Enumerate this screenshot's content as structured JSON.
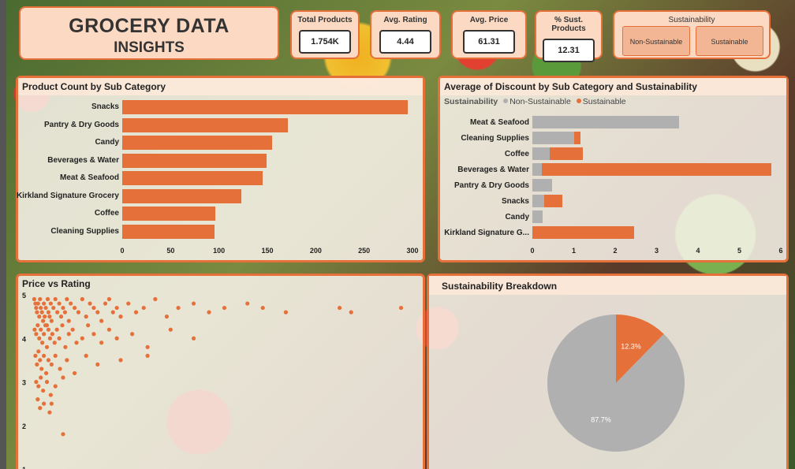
{
  "header": {
    "title_line1": "GROCERY DATA",
    "title_line2": "INSIGHTS"
  },
  "kpis": [
    {
      "label": "Total Products",
      "value": "1.754K"
    },
    {
      "label": "Avg. Rating",
      "value": "4.44"
    },
    {
      "label": "Avg. Price",
      "value": "61.31"
    },
    {
      "label": "% Sust. Products",
      "value": "12.31"
    }
  ],
  "slicer": {
    "label": "Sustainability",
    "options": [
      "Non-Sustainable",
      "Sustainable"
    ]
  },
  "colors": {
    "orange": "#e6703a",
    "gray": "#b0b0b0",
    "panel_border": "#e6703a"
  },
  "chart_data": [
    {
      "type": "bar",
      "title": "Product Count by Sub Category",
      "orientation": "horizontal",
      "categories": [
        "Snacks",
        "Pantry & Dry Goods",
        "Candy",
        "Beverages & Water",
        "Meat & Seafood",
        "Kirkland Signature Grocery",
        "Coffee",
        "Cleaning Supplies"
      ],
      "values": [
        295,
        171,
        155,
        149,
        145,
        123,
        96,
        95
      ],
      "xlim": [
        0,
        300
      ],
      "xticks": [
        "0",
        "50",
        "100",
        "150",
        "200",
        "250",
        "300"
      ]
    },
    {
      "type": "bar",
      "stacked": true,
      "orientation": "horizontal",
      "title": "Average of Discount by Sub Category and Sustainability",
      "legend_title": "Sustainability",
      "categories": [
        "Meat & Seafood",
        "Cleaning Supplies",
        "Coffee",
        "Beverages & Water",
        "Pantry & Dry Goods",
        "Snacks",
        "Candy",
        "Kirkland Signature G..."
      ],
      "series": [
        {
          "name": "Non-Sustainable",
          "color": "#b0b0b0",
          "values": [
            3.55,
            1.0,
            0.42,
            0.22,
            0.48,
            0.28,
            0.25,
            0.0
          ]
        },
        {
          "name": "Sustainable",
          "color": "#e6703a",
          "values": [
            0.0,
            0.17,
            0.8,
            5.55,
            0.0,
            0.44,
            0.0,
            2.45
          ]
        }
      ],
      "xlim": [
        0,
        6
      ],
      "xticks": [
        "0",
        "1",
        "2",
        "3",
        "4",
        "5",
        "6"
      ]
    },
    {
      "type": "scatter",
      "title": "Price vs Rating",
      "ylim": [
        1,
        5
      ],
      "yticks": [
        "5",
        "4",
        "3",
        "2",
        "1"
      ],
      "xlim": [
        0,
        1000
      ],
      "points": [
        [
          5,
          4.9
        ],
        [
          8,
          4.8
        ],
        [
          10,
          4.7
        ],
        [
          12,
          4.6
        ],
        [
          15,
          4.8
        ],
        [
          18,
          4.5
        ],
        [
          20,
          4.9
        ],
        [
          22,
          4.7
        ],
        [
          25,
          4.6
        ],
        [
          28,
          4.4
        ],
        [
          30,
          4.8
        ],
        [
          32,
          4.5
        ],
        [
          35,
          4.7
        ],
        [
          38,
          4.3
        ],
        [
          40,
          4.9
        ],
        [
          42,
          4.6
        ],
        [
          45,
          4.5
        ],
        [
          48,
          4.8
        ],
        [
          50,
          4.4
        ],
        [
          55,
          4.7
        ],
        [
          60,
          4.9
        ],
        [
          65,
          4.6
        ],
        [
          70,
          4.8
        ],
        [
          75,
          4.5
        ],
        [
          80,
          4.7
        ],
        [
          85,
          4.6
        ],
        [
          90,
          4.9
        ],
        [
          95,
          4.4
        ],
        [
          100,
          4.8
        ],
        [
          110,
          4.7
        ],
        [
          120,
          4.6
        ],
        [
          130,
          4.9
        ],
        [
          140,
          4.5
        ],
        [
          150,
          4.8
        ],
        [
          160,
          4.7
        ],
        [
          170,
          4.6
        ],
        [
          180,
          4.4
        ],
        [
          190,
          4.8
        ],
        [
          200,
          4.9
        ],
        [
          210,
          4.6
        ],
        [
          220,
          4.7
        ],
        [
          230,
          4.5
        ],
        [
          250,
          4.8
        ],
        [
          270,
          4.6
        ],
        [
          290,
          4.7
        ],
        [
          320,
          4.9
        ],
        [
          350,
          4.5
        ],
        [
          380,
          4.7
        ],
        [
          420,
          4.8
        ],
        [
          460,
          4.6
        ],
        [
          500,
          4.7
        ],
        [
          560,
          4.8
        ],
        [
          600,
          4.7
        ],
        [
          660,
          4.6
        ],
        [
          800,
          4.7
        ],
        [
          830,
          4.6
        ],
        [
          960,
          4.7
        ],
        [
          6,
          4.2
        ],
        [
          10,
          4.1
        ],
        [
          14,
          4.3
        ],
        [
          18,
          4.0
        ],
        [
          22,
          4.2
        ],
        [
          26,
          3.9
        ],
        [
          30,
          4.1
        ],
        [
          34,
          4.3
        ],
        [
          38,
          3.8
        ],
        [
          42,
          4.2
        ],
        [
          46,
          4.0
        ],
        [
          52,
          4.1
        ],
        [
          58,
          3.9
        ],
        [
          64,
          4.2
        ],
        [
          70,
          4.0
        ],
        [
          78,
          4.3
        ],
        [
          86,
          3.8
        ],
        [
          95,
          4.1
        ],
        [
          105,
          4.2
        ],
        [
          115,
          3.9
        ],
        [
          130,
          4.0
        ],
        [
          145,
          4.3
        ],
        [
          160,
          4.1
        ],
        [
          180,
          3.9
        ],
        [
          200,
          4.2
        ],
        [
          220,
          4.0
        ],
        [
          260,
          4.1
        ],
        [
          300,
          3.8
        ],
        [
          360,
          4.2
        ],
        [
          420,
          4.0
        ],
        [
          8,
          3.6
        ],
        [
          12,
          3.4
        ],
        [
          16,
          3.7
        ],
        [
          20,
          3.5
        ],
        [
          24,
          3.3
        ],
        [
          30,
          3.6
        ],
        [
          36,
          3.2
        ],
        [
          42,
          3.5
        ],
        [
          50,
          3.4
        ],
        [
          60,
          3.6
        ],
        [
          72,
          3.3
        ],
        [
          90,
          3.5
        ],
        [
          110,
          3.2
        ],
        [
          140,
          3.6
        ],
        [
          170,
          3.4
        ],
        [
          230,
          3.5
        ],
        [
          300,
          3.6
        ],
        [
          10,
          3.0
        ],
        [
          16,
          2.9
        ],
        [
          22,
          3.1
        ],
        [
          28,
          2.8
        ],
        [
          38,
          3.0
        ],
        [
          48,
          2.7
        ],
        [
          60,
          2.9
        ],
        [
          80,
          3.1
        ],
        [
          14,
          2.6
        ],
        [
          20,
          2.4
        ],
        [
          30,
          2.5
        ],
        [
          45,
          2.3
        ],
        [
          50,
          2.5
        ],
        [
          80,
          1.8
        ]
      ]
    },
    {
      "type": "pie",
      "title": "Sustainability Breakdown",
      "slices": [
        {
          "name": "Sustainable",
          "value": 12.3,
          "label": "12.3%",
          "color": "#e6703a"
        },
        {
          "name": "Non-Sustainable",
          "value": 87.7,
          "label": "87.7%",
          "color": "#b0b0b0"
        }
      ]
    }
  ]
}
